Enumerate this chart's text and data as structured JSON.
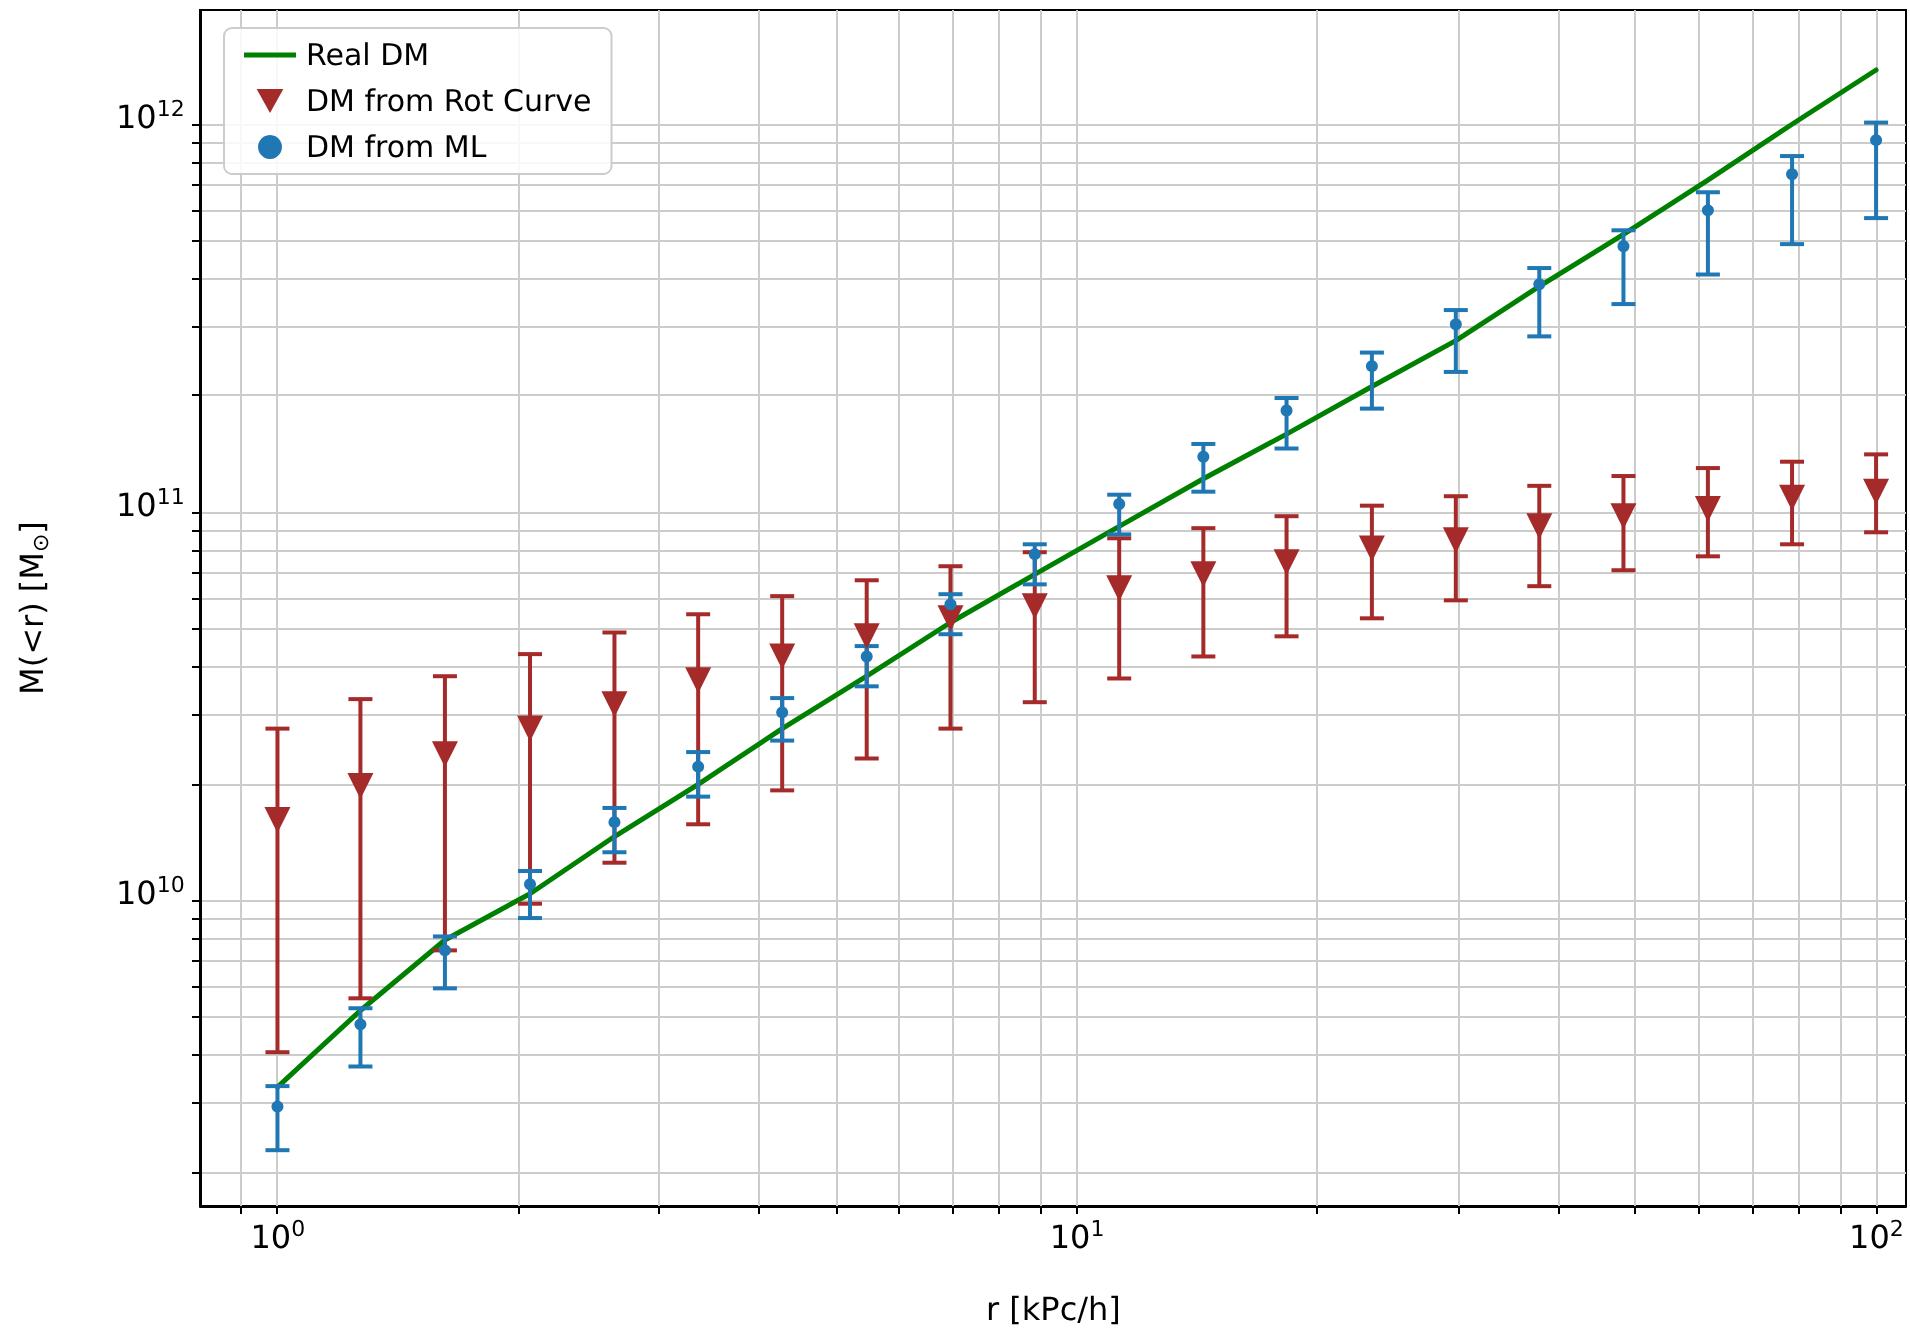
{
  "chart_data": {
    "type": "scatter",
    "xlabel": "r [kPc/h]",
    "ylabel": "M(<r) [M$_{⊙}$]",
    "x": [
      1,
      1.27,
      1.62,
      2.07,
      2.64,
      3.36,
      4.28,
      5.46,
      6.95,
      8.86,
      11.3,
      14.4,
      18.3,
      23.4,
      29.8,
      37.9,
      48.3,
      61.6,
      78.5,
      100
    ],
    "series": [
      {
        "name": "Real DM",
        "type": "line",
        "color": "#008000",
        "marker": "none",
        "line_style": "solid",
        "values": [
          3300000000.0,
          5200000000.0,
          7900000000.0,
          10400000000.0,
          14600000000.0,
          19900000000.0,
          27700000000.0,
          37800000000.0,
          52000000000.0,
          69200000000.0,
          92000000000.0,
          122000000000.0,
          159000000000.0,
          211000000000.0,
          277000000000.0,
          382000000000.0,
          520000000000.0,
          718000000000.0,
          1000000000000.0,
          1380000000000.0
        ]
      },
      {
        "name": "DM from Rot Curve",
        "color": "#a52a2a",
        "marker": "triangle",
        "values": [
          16100000000.0,
          19700000000.0,
          23800000000.0,
          27700000000.0,
          32000000000.0,
          36900000000.0,
          42500000000.0,
          47900000000.0,
          53300000000.0,
          57300000000.0,
          63700000000.0,
          69200000000.0,
          74300000000.0,
          80700000000.0,
          84700000000.0,
          92000000000.0,
          97700000000.0,
          102000000000.0,
          109000000000.0,
          113000000000.0
        ],
        "errors": [
          [
            4060000000.0,
            27700000000.0
          ],
          [
            5590000000.0,
            33000000000.0
          ],
          [
            7430000000.0,
            37800000000.0
          ],
          [
            9800000000.0,
            43100000000.0
          ],
          [
            12500000000.0,
            49000000000.0
          ],
          [
            15700000000.0,
            54600000000.0
          ],
          [
            19200000000.0,
            60800000000.0
          ],
          [
            23200000000.0,
            66800000000.0
          ],
          [
            27700000000.0,
            72600000000.0
          ],
          [
            32400000000.0,
            78900000000.0
          ],
          [
            37300000000.0,
            85700000000.0
          ],
          [
            42500000000.0,
            91000000000.0
          ],
          [
            47900000000.0,
            97700000000.0
          ],
          [
            53300000000.0,
            104000000000.0
          ],
          [
            59300000000.0,
            110000000000.0
          ],
          [
            64500000000.0,
            117000000000.0
          ],
          [
            70900000000.0,
            124000000000.0
          ],
          [
            77000000000.0,
            130000000000.0
          ],
          [
            82700000000.0,
            135000000000.0
          ],
          [
            88800000000.0,
            141000000000.0
          ]
        ]
      },
      {
        "name": "DM from ML",
        "color": "#1f77b4",
        "marker": "circle",
        "values": [
          2940000000.0,
          4790000000.0,
          7430000000.0,
          11000000000.0,
          15900000000.0,
          22100000000.0,
          30500000000.0,
          42500000000.0,
          57900000000.0,
          78000000000.0,
          105000000000.0,
          139000000000.0,
          183000000000.0,
          238000000000.0,
          305000000000.0,
          387000000000.0,
          485000000000.0,
          600000000000.0,
          743000000000.0,
          910000000000.0
        ],
        "errors": [
          [
            2270000000.0,
            3320000000.0
          ],
          [
            3730000000.0,
            5270000000.0
          ],
          [
            5930000000.0,
            8070000000.0
          ],
          [
            9000000000.0,
            11900000000.0
          ],
          [
            13300000000.0,
            17300000000.0
          ],
          [
            18500000000.0,
            24100000000.0
          ],
          [
            25800000000.0,
            33200000000.0
          ],
          [
            35600000000.0,
            45200000000.0
          ],
          [
            48500000000.0,
            61500000000.0
          ],
          [
            65200000000.0,
            82700000000.0
          ],
          [
            87700000000.0,
            111000000000.0
          ],
          [
            113000000000.0,
            150000000000.0
          ],
          [
            146000000000.0,
            197000000000.0
          ],
          [
            185000000000.0,
            258000000000.0
          ],
          [
            230000000000.0,
            332000000000.0
          ],
          [
            284000000000.0,
            426000000000.0
          ],
          [
            344000000000.0,
            533000000000.0
          ],
          [
            410000000000.0,
            668000000000.0
          ],
          [
            491000000000.0,
            828000000000.0
          ],
          [
            573000000000.0,
            1010000000000.0
          ]
        ]
      }
    ],
    "log": "xy",
    "xlim": [
      0.8,
      109
    ],
    "ylim": [
      1630000000.0,
      1970000000000.0
    ],
    "xticks": [
      {
        "value": 0.9,
        "label": null
      },
      {
        "value": 1,
        "label": "10$^{0}$"
      },
      {
        "value": 2,
        "label": null
      },
      {
        "value": 3,
        "label": null
      },
      {
        "value": 4,
        "label": null
      },
      {
        "value": 5,
        "label": null
      },
      {
        "value": 6,
        "label": null
      },
      {
        "value": 7,
        "label": null
      },
      {
        "value": 8,
        "label": null
      },
      {
        "value": 9,
        "label": null
      },
      {
        "value": 10,
        "label": "10$^{1}$"
      },
      {
        "value": 20,
        "label": null
      },
      {
        "value": 30,
        "label": null
      },
      {
        "value": 40,
        "label": null
      },
      {
        "value": 50,
        "label": null
      },
      {
        "value": 60,
        "label": null
      },
      {
        "value": 70,
        "label": null
      },
      {
        "value": 80,
        "label": null
      },
      {
        "value": 90,
        "label": null
      },
      {
        "value": 100,
        "label": "10$^{2}$"
      }
    ],
    "yticks": [
      {
        "value": 2000000000.0,
        "label": null
      },
      {
        "value": 3000000000.0,
        "label": null
      },
      {
        "value": 4000000000.0,
        "label": null
      },
      {
        "value": 5000000000.0,
        "label": null
      },
      {
        "value": 6000000000.0,
        "label": null
      },
      {
        "value": 7000000000.0,
        "label": null
      },
      {
        "value": 8000000000.0,
        "label": null
      },
      {
        "value": 9000000000.0,
        "label": null
      },
      {
        "value": 10000000000.0,
        "label": "10$^{10}$"
      },
      {
        "value": 20000000000.0,
        "label": null
      },
      {
        "value": 30000000000.0,
        "label": null
      },
      {
        "value": 40000000000.0,
        "label": null
      },
      {
        "value": 50000000000.0,
        "label": null
      },
      {
        "value": 60000000000.0,
        "label": null
      },
      {
        "value": 70000000000.0,
        "label": null
      },
      {
        "value": 80000000000.0,
        "label": null
      },
      {
        "value": 90000000000.0,
        "label": null
      },
      {
        "value": 100000000000.0,
        "label": "10$^{11}$"
      },
      {
        "value": 200000000000.0,
        "label": null
      },
      {
        "value": 300000000000.0,
        "label": null
      },
      {
        "value": 400000000000.0,
        "label": null
      },
      {
        "value": 500000000000.0,
        "label": null
      },
      {
        "value": 600000000000.0,
        "label": null
      },
      {
        "value": 700000000000.0,
        "label": null
      },
      {
        "value": 800000000000.0,
        "label": null
      },
      {
        "value": 900000000000.0,
        "label": null
      },
      {
        "value": 1000000000000.0,
        "label": "10$^{12}$"
      }
    ],
    "grid": true,
    "legend": "top left"
  }
}
